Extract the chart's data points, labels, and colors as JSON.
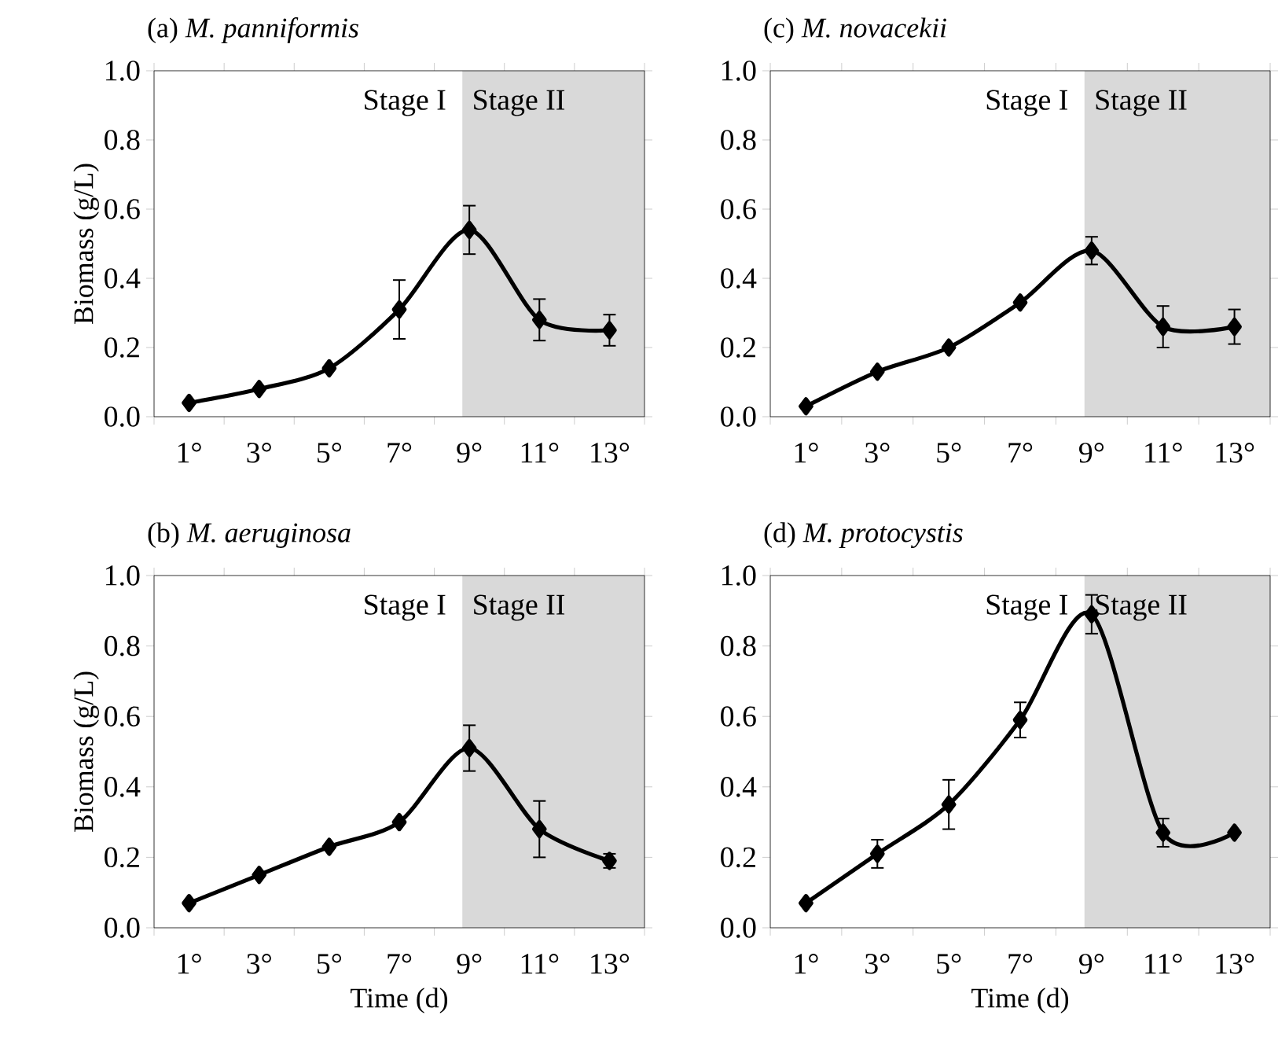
{
  "chart_data": [
    {
      "type": "line",
      "title": "(a) *M. panniformis*",
      "annotations": [
        "Stage I"
      ],
      "ylabel": "Biomass (g/L)",
      "x": [
        1,
        3,
        5,
        7,
        9,
        11,
        13
      ],
      "values": [
        0.04,
        0.08,
        0.14,
        0.31,
        0.54,
        0.28,
        0.25
      ],
      "errors": [
        null,
        null,
        null,
        0.085,
        0.07,
        0.06,
        0.045
      ],
      "color": "#000000",
      "marker": "diamond",
      "line_style": "solid",
      "xlim": [
        0,
        14
      ],
      "xticks": [
        {
          "value": 0,
          "label": null
        },
        {
          "value": 1,
          "label": "1°"
        },
        {
          "value": 2,
          "label": null
        },
        {
          "value": 3,
          "label": "3°"
        },
        {
          "value": 4,
          "label": null
        },
        {
          "value": 5,
          "label": "5°"
        },
        {
          "value": 6,
          "label": null
        },
        {
          "value": 7,
          "label": "7°"
        },
        {
          "value": 8,
          "label": null
        },
        {
          "value": 9,
          "label": "9°"
        },
        {
          "value": 10,
          "label": null
        },
        {
          "value": 11,
          "label": "11°"
        },
        {
          "value": 12,
          "label": null
        },
        {
          "value": 13,
          "label": "13°"
        },
        {
          "value": 14,
          "label": null
        }
      ],
      "ylim": [
        0,
        1
      ],
      "yticks": [
        {
          "value": 0,
          "label": "0.0"
        },
        {
          "value": 0.2,
          "label": "0.2"
        },
        {
          "value": 0.4,
          "label": "0.4"
        },
        {
          "value": 0.6,
          "label": "0.6"
        },
        {
          "value": 0.8,
          "label": "0.8"
        },
        {
          "value": 1,
          "label": "1.0"
        }
      ],
      "bands": [
        {
          "axis": "x",
          "from": 8.8,
          "to": 14,
          "label": "Stage II",
          "color": "#d9d9d9"
        }
      ]
    },
    {
      "type": "line",
      "title": "(c) *M. novacekii*",
      "annotations": [
        "Stage I"
      ],
      "x": [
        1,
        3,
        5,
        7,
        9,
        11,
        13
      ],
      "values": [
        0.03,
        0.13,
        0.2,
        0.33,
        0.48,
        0.26,
        0.26
      ],
      "errors": [
        null,
        null,
        null,
        null,
        0.04,
        0.06,
        0.05
      ],
      "color": "#000000",
      "marker": "diamond",
      "line_style": "solid",
      "xlim": [
        0,
        14
      ],
      "xticks": [
        {
          "value": 0,
          "label": null
        },
        {
          "value": 1,
          "label": "1°"
        },
        {
          "value": 2,
          "label": null
        },
        {
          "value": 3,
          "label": "3°"
        },
        {
          "value": 4,
          "label": null
        },
        {
          "value": 5,
          "label": "5°"
        },
        {
          "value": 6,
          "label": null
        },
        {
          "value": 7,
          "label": "7°"
        },
        {
          "value": 8,
          "label": null
        },
        {
          "value": 9,
          "label": "9°"
        },
        {
          "value": 10,
          "label": null
        },
        {
          "value": 11,
          "label": "11°"
        },
        {
          "value": 12,
          "label": null
        },
        {
          "value": 13,
          "label": "13°"
        },
        {
          "value": 14,
          "label": null
        }
      ],
      "ylim": [
        0,
        1
      ],
      "yticks": [
        {
          "value": 0,
          "label": "0.0"
        },
        {
          "value": 0.2,
          "label": "0.2"
        },
        {
          "value": 0.4,
          "label": "0.4"
        },
        {
          "value": 0.6,
          "label": "0.6"
        },
        {
          "value": 0.8,
          "label": "0.8"
        },
        {
          "value": 1,
          "label": "1.0"
        }
      ],
      "bands": [
        {
          "axis": "x",
          "from": 8.8,
          "to": 14,
          "label": "Stage II",
          "color": "#d9d9d9"
        }
      ]
    },
    {
      "type": "line",
      "title": "(b) *M. aeruginosa*",
      "annotations": [
        "Stage I"
      ],
      "ylabel": "Biomass (g/L)",
      "xlabel": "Time (d)",
      "x": [
        1,
        3,
        5,
        7,
        9,
        11,
        13
      ],
      "values": [
        0.07,
        0.15,
        0.23,
        0.3,
        0.51,
        0.28,
        0.19
      ],
      "errors": [
        null,
        null,
        null,
        null,
        0.065,
        0.08,
        0.02
      ],
      "color": "#000000",
      "marker": "diamond",
      "line_style": "solid",
      "xlim": [
        0,
        14
      ],
      "xticks": [
        {
          "value": 0,
          "label": null
        },
        {
          "value": 1,
          "label": "1°"
        },
        {
          "value": 2,
          "label": null
        },
        {
          "value": 3,
          "label": "3°"
        },
        {
          "value": 4,
          "label": null
        },
        {
          "value": 5,
          "label": "5°"
        },
        {
          "value": 6,
          "label": null
        },
        {
          "value": 7,
          "label": "7°"
        },
        {
          "value": 8,
          "label": null
        },
        {
          "value": 9,
          "label": "9°"
        },
        {
          "value": 10,
          "label": null
        },
        {
          "value": 11,
          "label": "11°"
        },
        {
          "value": 12,
          "label": null
        },
        {
          "value": 13,
          "label": "13°"
        },
        {
          "value": 14,
          "label": null
        }
      ],
      "ylim": [
        0,
        1
      ],
      "yticks": [
        {
          "value": 0,
          "label": "0.0"
        },
        {
          "value": 0.2,
          "label": "0.2"
        },
        {
          "value": 0.4,
          "label": "0.4"
        },
        {
          "value": 0.6,
          "label": "0.6"
        },
        {
          "value": 0.8,
          "label": "0.8"
        },
        {
          "value": 1,
          "label": "1.0"
        }
      ],
      "bands": [
        {
          "axis": "x",
          "from": 8.8,
          "to": 14,
          "label": "Stage II",
          "color": "#d9d9d9"
        }
      ]
    },
    {
      "type": "line",
      "title": "(d) *M. protocystis*",
      "annotations": [
        "Stage I"
      ],
      "xlabel": "Time (d)",
      "x": [
        1,
        3,
        5,
        7,
        9,
        11,
        13
      ],
      "values": [
        0.07,
        0.21,
        0.35,
        0.59,
        0.89,
        0.27,
        0.27
      ],
      "errors": [
        null,
        0.04,
        0.07,
        0.05,
        0.055,
        0.04,
        null
      ],
      "color": "#000000",
      "marker": "diamond",
      "line_style": "solid",
      "xlim": [
        0,
        14
      ],
      "xticks": [
        {
          "value": 0,
          "label": null
        },
        {
          "value": 1,
          "label": "1°"
        },
        {
          "value": 2,
          "label": null
        },
        {
          "value": 3,
          "label": "3°"
        },
        {
          "value": 4,
          "label": null
        },
        {
          "value": 5,
          "label": "5°"
        },
        {
          "value": 6,
          "label": null
        },
        {
          "value": 7,
          "label": "7°"
        },
        {
          "value": 8,
          "label": null
        },
        {
          "value": 9,
          "label": "9°"
        },
        {
          "value": 10,
          "label": null
        },
        {
          "value": 11,
          "label": "11°"
        },
        {
          "value": 12,
          "label": null
        },
        {
          "value": 13,
          "label": "13°"
        },
        {
          "value": 14,
          "label": null
        }
      ],
      "ylim": [
        0,
        1
      ],
      "yticks": [
        {
          "value": 0,
          "label": "0.0"
        },
        {
          "value": 0.2,
          "label": "0.2"
        },
        {
          "value": 0.4,
          "label": "0.4"
        },
        {
          "value": 0.6,
          "label": "0.6"
        },
        {
          "value": 0.8,
          "label": "0.8"
        },
        {
          "value": 1,
          "label": "1.0"
        }
      ],
      "bands": [
        {
          "axis": "x",
          "from": 8.8,
          "to": 14,
          "label": "Stage II",
          "color": "#d9d9d9"
        }
      ]
    }
  ]
}
